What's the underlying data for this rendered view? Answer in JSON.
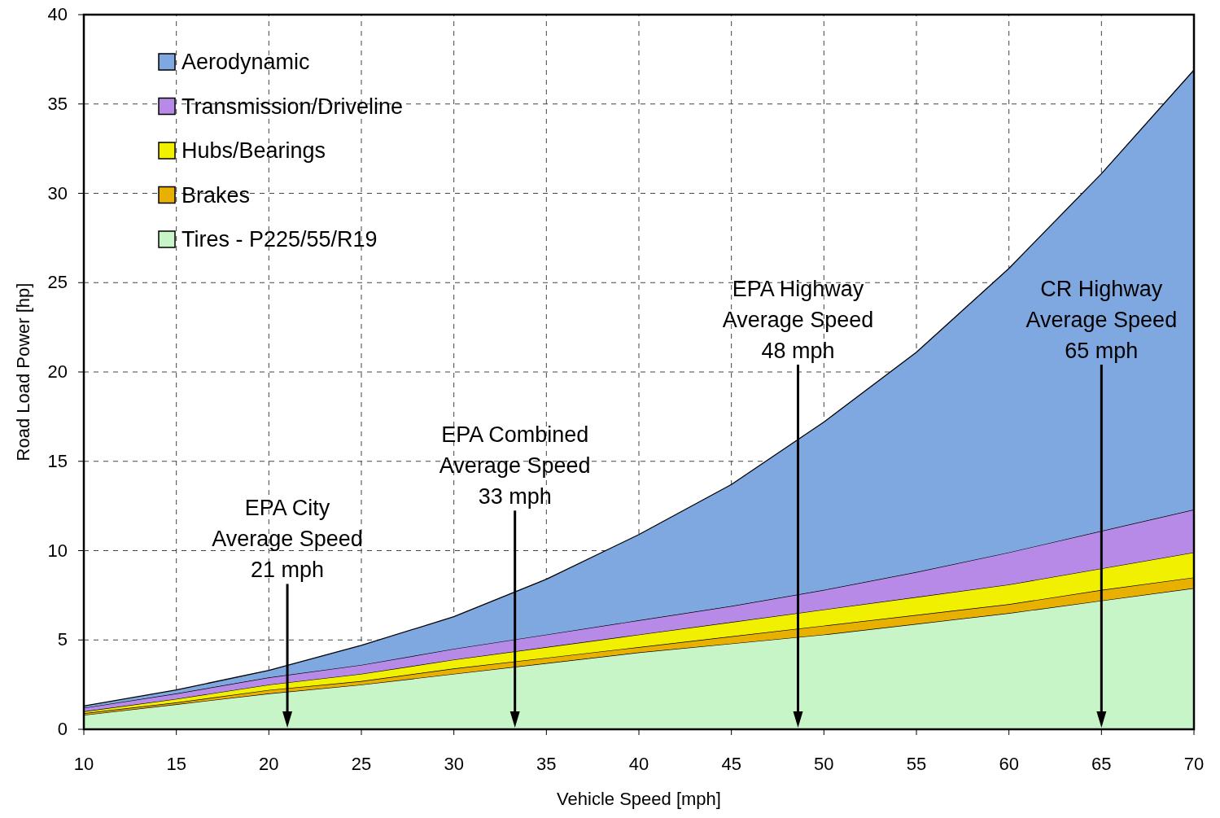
{
  "chart_data": {
    "type": "area",
    "stacked": true,
    "xlabel": "Vehicle Speed [mph]",
    "ylabel": "Road Load Power [hp]",
    "x": [
      10,
      15,
      20,
      25,
      30,
      35,
      40,
      45,
      50,
      55,
      60,
      65,
      70
    ],
    "xlim": [
      10,
      70
    ],
    "xticks": [
      10,
      15,
      20,
      25,
      30,
      35,
      40,
      45,
      50,
      55,
      60,
      65,
      70
    ],
    "ylim": [
      0,
      40
    ],
    "yticks": [
      0,
      5,
      10,
      15,
      20,
      25,
      30,
      35,
      40
    ],
    "grid": true,
    "legend": "top left",
    "line_style": "solid",
    "series": [
      {
        "name": "Tires - P225/55/R19",
        "color": "#c8f5c8",
        "values": [
          0.8,
          1.4,
          2.0,
          2.5,
          3.1,
          3.7,
          4.3,
          4.8,
          5.3,
          5.9,
          6.5,
          7.2,
          7.9
        ]
      },
      {
        "name": "Brakes",
        "color": "#e8b000",
        "values": [
          0.1,
          0.1,
          0.2,
          0.2,
          0.3,
          0.3,
          0.3,
          0.4,
          0.5,
          0.5,
          0.5,
          0.6,
          0.6
        ]
      },
      {
        "name": "Hubs/Bearings",
        "color": "#f0f000",
        "values": [
          0.1,
          0.2,
          0.3,
          0.4,
          0.5,
          0.6,
          0.7,
          0.8,
          0.9,
          1.0,
          1.1,
          1.2,
          1.4
        ]
      },
      {
        "name": "Transmission/Driveline",
        "color": "#b68ae6",
        "values": [
          0.2,
          0.3,
          0.4,
          0.5,
          0.6,
          0.7,
          0.8,
          0.9,
          1.1,
          1.4,
          1.8,
          2.1,
          2.4
        ]
      },
      {
        "name": "Aerodynamic",
        "color": "#7fa8e0",
        "values": [
          0.1,
          0.2,
          0.4,
          1.1,
          1.8,
          3.1,
          4.8,
          6.8,
          9.4,
          12.3,
          15.9,
          20.0,
          24.6
        ]
      }
    ],
    "ref_lines": [
      {
        "axis": "x",
        "value": 21,
        "label": "EPA City\nAverage Speed\n21 mph"
      },
      {
        "axis": "x",
        "value": 33.3,
        "label": "EPA Combined\nAverage Speed\n33 mph"
      },
      {
        "axis": "x",
        "value": 48.6,
        "label": "EPA Highway\nAverage Speed\n48 mph"
      },
      {
        "axis": "x",
        "value": 65,
        "label": "CR Highway\nAverage Speed\n65 mph"
      }
    ]
  }
}
